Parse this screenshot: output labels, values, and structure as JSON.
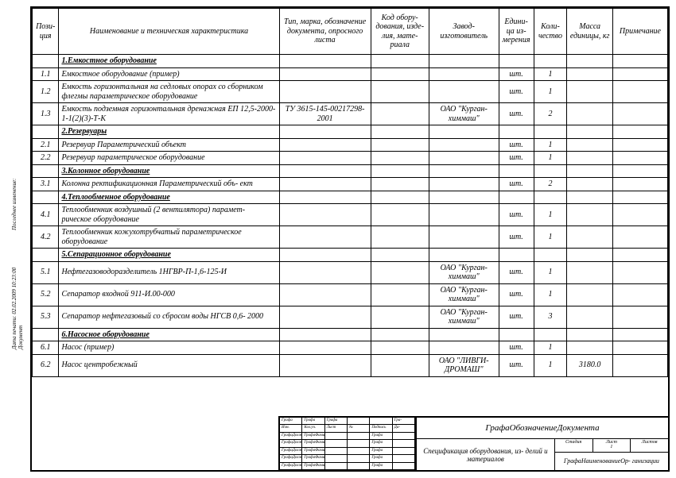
{
  "headers": {
    "pos": "Пози- ция",
    "name": "Наименование и техническая характеристика",
    "type": "Тип, марка, обозначение документа, опросного листа",
    "code": "Код обору- дования, изде- лия, мате- риала",
    "manuf": "Завод- изготовитель",
    "unit": "Едини- ца из- мерения",
    "qty": "Коли- чество",
    "mass": "Масса единицы, кг",
    "note": "Примечание"
  },
  "sections": [
    {
      "title": "1.Емкостное оборудование",
      "rows": [
        {
          "pos": "1.1",
          "name": "Емкостное оборудование (пример)",
          "type": "",
          "manuf": "",
          "unit": "шт.",
          "qty": "1",
          "mass": ""
        },
        {
          "pos": "1.2",
          "name": "Емкость горизонтальная на седловых опорах со сборником флегмы параметрическое оборудование",
          "type": "",
          "manuf": "",
          "unit": "шт.",
          "qty": "1",
          "mass": ""
        },
        {
          "pos": "1.3",
          "name": "Емкость подземная горизонтальная дренажная ЕП 12,5-2000-1-1(2)(3)-Т-К",
          "type": "ТУ 3615-145-00217298-2001",
          "manuf": "ОАО \"Курган- химмаш\"",
          "unit": "шт.",
          "qty": "2",
          "mass": ""
        }
      ]
    },
    {
      "title": "2.Резервуары",
      "rows": [
        {
          "pos": "2.1",
          "name": "Резервуар Параметрический объект",
          "type": "",
          "manuf": "",
          "unit": "шт.",
          "qty": "1",
          "mass": ""
        },
        {
          "pos": "2.2",
          "name": "Резервуар параметрическое оборудование",
          "type": "",
          "manuf": "",
          "unit": "шт.",
          "qty": "1",
          "mass": ""
        }
      ]
    },
    {
      "title": "3.Колонное оборудование",
      "rows": [
        {
          "pos": "3.1",
          "name": "Колонна ректификационная Параметрический объ- ект",
          "type": "",
          "manuf": "",
          "unit": "шт.",
          "qty": "2",
          "mass": ""
        }
      ]
    },
    {
      "title": "4.Теплообменное оборудование",
      "rows": [
        {
          "pos": "4.1",
          "name": "Теплообменник воздушный (2 вентилятора) парамет- рическое оборудование",
          "type": "",
          "manuf": "",
          "unit": "шт.",
          "qty": "1",
          "mass": ""
        },
        {
          "pos": "4.2",
          "name": "Теплообменник кожухотрубчатый параметрическое оборудование",
          "type": "",
          "manuf": "",
          "unit": "шт.",
          "qty": "1",
          "mass": ""
        }
      ]
    },
    {
      "title": "5.Сепарационное оборудование",
      "rows": [
        {
          "pos": "5.1",
          "name": "Нефтегазоводоразделитель 1НГВР-П-1,6-125-И",
          "type": "",
          "manuf": "ОАО \"Курган- химмаш\"",
          "unit": "шт.",
          "qty": "1",
          "mass": ""
        },
        {
          "pos": "5.2",
          "name": "Сепаратор входной 911-И.00-000",
          "type": "",
          "manuf": "ОАО \"Курган- химмаш\"",
          "unit": "шт.",
          "qty": "1",
          "mass": ""
        },
        {
          "pos": "5.3",
          "name": "Сепаратор нефтегазовый со сбросом воды НГСВ 0,6- 2000",
          "type": "",
          "manuf": "ОАО \"Курган- химмаш\"",
          "unit": "шт.",
          "qty": "3",
          "mass": ""
        }
      ]
    },
    {
      "title": "6.Насосное оборудование",
      "rows": [
        {
          "pos": "6.1",
          "name": "Насос (пример)",
          "type": "",
          "manuf": "",
          "unit": "шт.",
          "qty": "1",
          "mass": ""
        },
        {
          "pos": "6.2",
          "name": "Насос центробежный",
          "type": "",
          "manuf": "ОАО \"ЛИВГИ- ДРОМАШ\"",
          "unit": "шт.",
          "qty": "1",
          "mass": "3180.0"
        }
      ]
    }
  ],
  "side": {
    "last_change": "Последнее изменение:",
    "print_date": "Дата печати: 02.02.2009 10:23:00",
    "doc": "Документ"
  },
  "titleblock": {
    "doc_designation": "ГрафаОбозначениеДокумента",
    "spec": "Спецификация оборудования, из- делий и материалов",
    "org": "ГрафаНаименованиеОр- ганизации",
    "stage": "Стадия",
    "sheet": "Лист",
    "sheets": "Листов",
    "sheet_no": "1",
    "small_rows": [
      [
        "Графа",
        "Графа",
        "Графа",
        "",
        "",
        "Гра-"
      ],
      [
        "Изм.",
        "Кол.уч.",
        "Лист",
        "№",
        "Подпись",
        "Да-"
      ],
      [
        "ГрафаДолжн",
        "ГрафаФами-",
        "",
        "",
        "Графа",
        ""
      ],
      [
        "ГрафаДолжн",
        "ГрафаФами-",
        "",
        "",
        "Графа",
        ""
      ],
      [
        "ГрафаДолжн",
        "ГрафаФами-",
        "",
        "",
        "Графа",
        ""
      ],
      [
        "ГрафаДолжн",
        "ГрафаФами-",
        "",
        "",
        "Графа",
        ""
      ],
      [
        "ГрафаДолжн",
        "ГрафаФами-",
        "",
        "",
        "Графа",
        ""
      ]
    ]
  }
}
